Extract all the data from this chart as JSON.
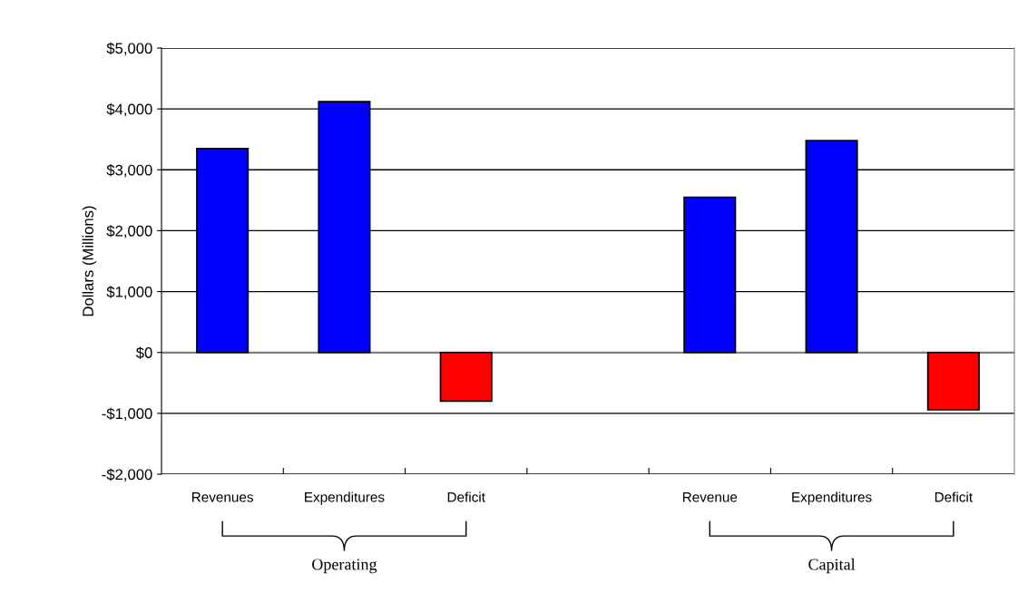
{
  "chart_data": {
    "type": "bar",
    "ylabel": "Dollars (Millions)",
    "categories": [
      "Revenues",
      "Expenditures",
      "Deficit",
      null,
      "Revenue",
      "Expenditures",
      "Deficit"
    ],
    "values": [
      3350,
      4120,
      -800,
      null,
      2550,
      3480,
      -940
    ],
    "colors": [
      "#0000ff",
      "#0000ff",
      "#ff0000",
      "#ff0000",
      "#0000ff",
      "#0000ff",
      "#ff0000"
    ],
    "ylim": [
      -2000,
      5000
    ],
    "yticks": [
      {
        "value": -2000,
        "label": "-$2,000"
      },
      {
        "value": -1000,
        "label": "-$1,000"
      },
      {
        "value": 0,
        "label": "$0"
      },
      {
        "value": 1000,
        "label": "$1,000"
      },
      {
        "value": 2000,
        "label": "$2,000"
      },
      {
        "value": 3000,
        "label": "$3,000"
      },
      {
        "value": 4000,
        "label": "$4,000"
      },
      {
        "value": 5000,
        "label": "$5,000"
      }
    ],
    "grid": "y",
    "legend": false,
    "annotations": [
      "Operating",
      "Capital"
    ]
  }
}
